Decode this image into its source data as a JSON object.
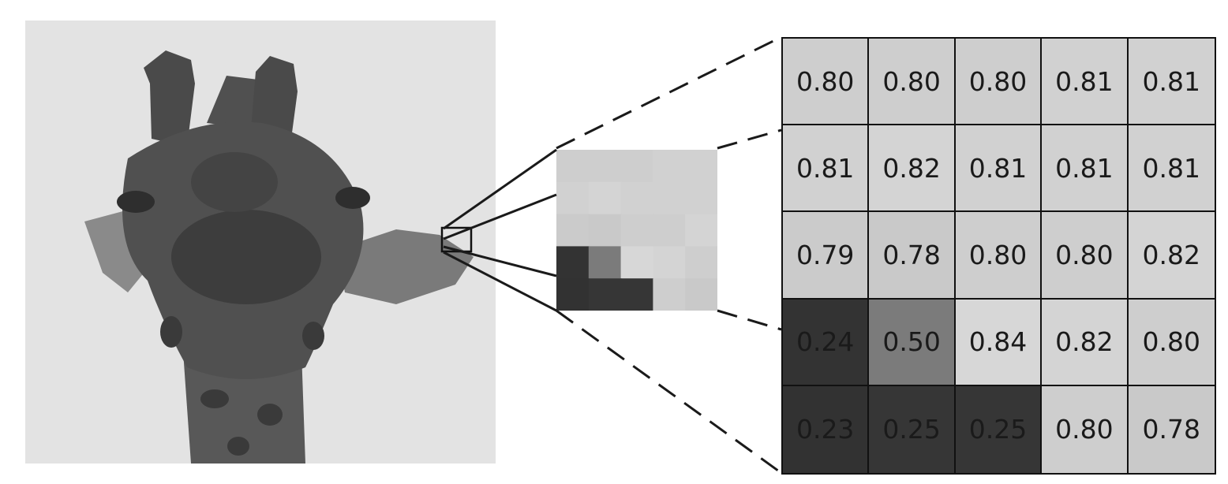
{
  "pixel_values": [
    [
      "0.80",
      "0.80",
      "0.80",
      "0.81",
      "0.81"
    ],
    [
      "0.81",
      "0.82",
      "0.81",
      "0.81",
      "0.81"
    ],
    [
      "0.79",
      "0.78",
      "0.80",
      "0.80",
      "0.82"
    ],
    [
      "0.24",
      "0.50",
      "0.84",
      "0.82",
      "0.80"
    ],
    [
      "0.23",
      "0.25",
      "0.25",
      "0.80",
      "0.78"
    ]
  ],
  "colors": {
    "photo_background": "#e3e3e3",
    "giraffe_dark": "#3d3d3d",
    "giraffe_mid": "#5a5a5a",
    "giraffe_light": "#777777",
    "line": "#1a1a1a"
  }
}
